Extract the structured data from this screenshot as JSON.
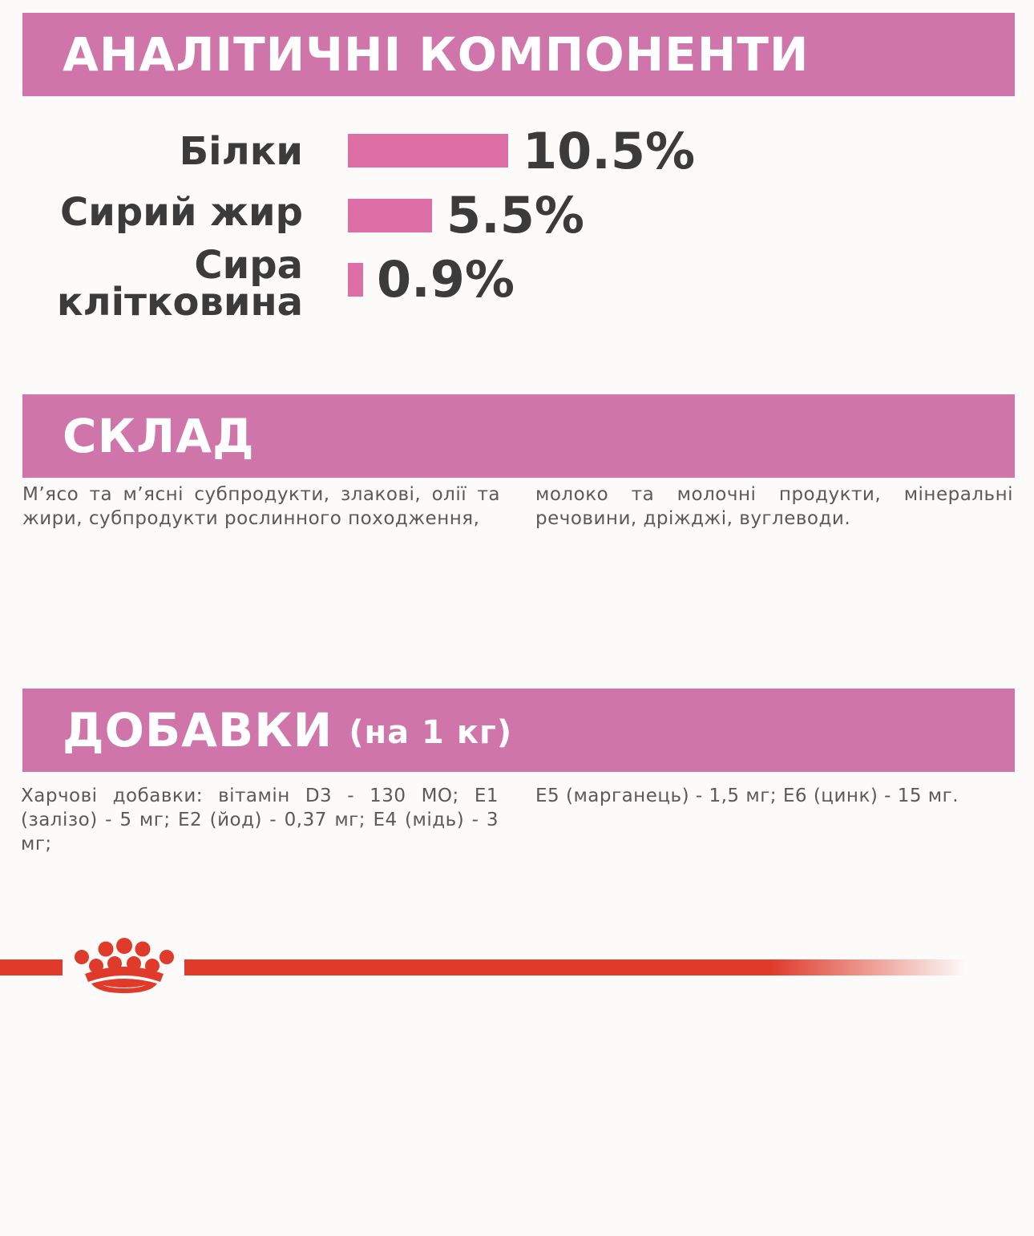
{
  "sections": {
    "analytical": {
      "title": "АНАЛІТИЧНІ КОМПОНЕНТИ"
    },
    "composition": {
      "title": "СКЛАД"
    },
    "additives": {
      "title": "ДОБАВКИ",
      "subtitle": "(на 1 кг)"
    }
  },
  "nutrients": [
    {
      "label": "Білки",
      "value": "10.5%",
      "percent": 10.5
    },
    {
      "label": "Сирий жир",
      "value": "5.5%",
      "percent": 5.5
    },
    {
      "label_line1": "Сира",
      "label_line2": "клітковина",
      "value": "0.9%",
      "percent": 0.9
    }
  ],
  "composition_text": {
    "col1": "М’ясо та м’ясні субпродукти, злакові, олії та жири, субпродукти рослинного походження,",
    "col2": "молоко та молочні продукти, мінеральні речовини, дріжджі, вуглеводи."
  },
  "additives_text": {
    "col1": "Харчові добавки: вітамін D3 - 130 МО; E1 (залізо) - 5 мг; E2 (йод) - 0,37 мг; E4 (мідь) - 3 мг;",
    "col2": "E5 (марганець) - 1,5 мг; E6 (цинк) - 15 мг."
  },
  "colors": {
    "band": "#cf75a9",
    "bar": "#dd6ea6",
    "brand_red": "#e03a2a"
  },
  "logo": {
    "icon": "royal-canin-crown-icon"
  }
}
